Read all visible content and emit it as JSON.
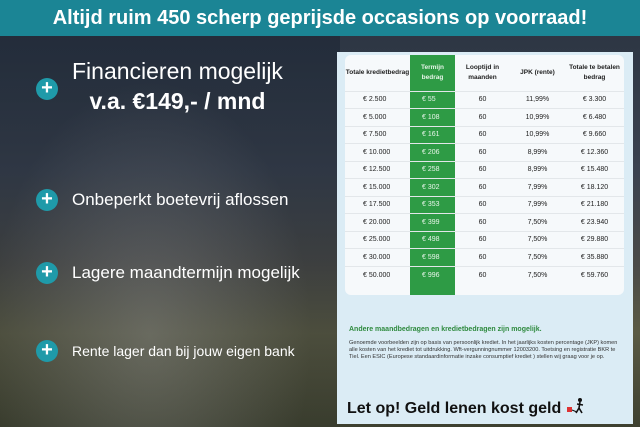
{
  "banner": "Altijd ruim 450 scherp geprijsde occasions op voorraad!",
  "features": {
    "financing_title": "Financieren mogelijk",
    "financing_price": "v.a. €149,- / mnd",
    "items": [
      "Onbeperkt boetevrij aflossen",
      "Lagere maandtermijn mogelijk",
      "Rente lager dan bij jouw eigen bank"
    ]
  },
  "icons": {
    "bullet": "plus-circle-icon",
    "warning": "person-with-ball-and-chain-icon"
  },
  "colors": {
    "banner": "#1b8595",
    "accent_green": "#2e9b45"
  },
  "table": {
    "headers": [
      "Totale kredietbedrag",
      "Termijn bedrag",
      "Looptijd in maanden",
      "JPK (rente)",
      "Totale te betalen bedrag"
    ],
    "rows": [
      [
        "€ 2.500",
        "€ 55",
        "60",
        "11,99%",
        "€ 3.300"
      ],
      [
        "€ 5.000",
        "€ 108",
        "60",
        "10,99%",
        "€ 6.480"
      ],
      [
        "€ 7.500",
        "€ 161",
        "60",
        "10,99%",
        "€ 9.660"
      ],
      [
        "€ 10.000",
        "€ 206",
        "60",
        "8,99%",
        "€ 12.360"
      ],
      [
        "€ 12.500",
        "€ 258",
        "60",
        "8,99%",
        "€ 15.480"
      ],
      [
        "€ 15.000",
        "€ 302",
        "60",
        "7,99%",
        "€ 18.120"
      ],
      [
        "€ 17.500",
        "€ 353",
        "60",
        "7,99%",
        "€ 21.180"
      ],
      [
        "€ 20.000",
        "€ 399",
        "60",
        "7,50%",
        "€ 23.940"
      ],
      [
        "€ 25.000",
        "€ 498",
        "60",
        "7,50%",
        "€ 29.880"
      ],
      [
        "€ 30.000",
        "€ 598",
        "60",
        "7,50%",
        "€ 35.880"
      ],
      [
        "€ 50.000",
        "€ 996",
        "60",
        "7,50%",
        "€ 59.760"
      ]
    ]
  },
  "note_heading": "Andere maandbedragen en kredietbedragen zijn mogelijk.",
  "note_text": "Genoemde voorbeelden zijn op basis van persoonlijk krediet. In het jaarlijks kosten percentage (JKP) komen alle kosten van het krediet tot uitdrukking. Wft-vergunningnummer 12003200. Toetsing en registratie BKR te Tiel. Een ESIC (Europese standaardinformatie inzake consumptief krediet ) stellen wij graag voor je op.",
  "warning": "Let op! Geld lenen kost geld"
}
